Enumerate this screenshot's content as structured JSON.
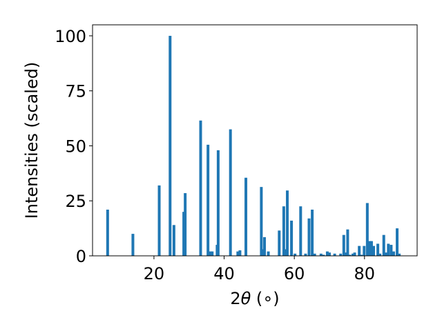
{
  "chart_data": {
    "type": "bar",
    "title": "",
    "xlabel_prefix": "2",
    "xlabel_symbol": "θ",
    "xlabel_suffix": " (∘)",
    "ylabel": "Intensities (scaled)",
    "xlim": [
      2.5,
      95
    ],
    "ylim": [
      0,
      105
    ],
    "xticks": [
      20,
      40,
      60,
      80
    ],
    "yticks": [
      0,
      25,
      50,
      75,
      100
    ],
    "bar_color": "#1f77b4",
    "grid": false,
    "x": [
      6.8,
      14.0,
      21.5,
      24.6,
      25.7,
      28.5,
      28.9,
      33.3,
      35.4,
      36.1,
      36.6,
      38.0,
      38.3,
      41.8,
      43.9,
      44.5,
      46.2,
      50.6,
      51.1,
      51.5,
      52.6,
      55.7,
      57.0,
      57.5,
      58.0,
      59.2,
      60.2,
      61.8,
      63.2,
      64.2,
      65.1,
      65.8,
      67.6,
      68.3,
      69.4,
      70.0,
      71.5,
      73.2,
      74.1,
      74.5,
      75.2,
      75.8,
      76.7,
      77.2,
      78.5,
      79.1,
      79.9,
      80.8,
      81.5,
      82.0,
      82.6,
      83.8,
      84.4,
      85.5,
      86.1,
      86.8,
      87.6,
      88.3,
      89.3,
      89.9
    ],
    "values": [
      21,
      10,
      32,
      100,
      14,
      20,
      28.5,
      61.5,
      50.5,
      2,
      2,
      5,
      48,
      57.5,
      2,
      2.5,
      35.5,
      31.3,
      3,
      8.5,
      2,
      11.5,
      22.5,
      3,
      29.7,
      16,
      1,
      22.5,
      1,
      17,
      21,
      1,
      1,
      0.5,
      2,
      1.5,
      1,
      1,
      9.5,
      1.5,
      12,
      0.5,
      1,
      1.5,
      4.5,
      0.5,
      4.5,
      24,
      6.7,
      6.7,
      4.5,
      5.5,
      1,
      9.5,
      1.5,
      5.5,
      5,
      2,
      12.5,
      1
    ]
  }
}
